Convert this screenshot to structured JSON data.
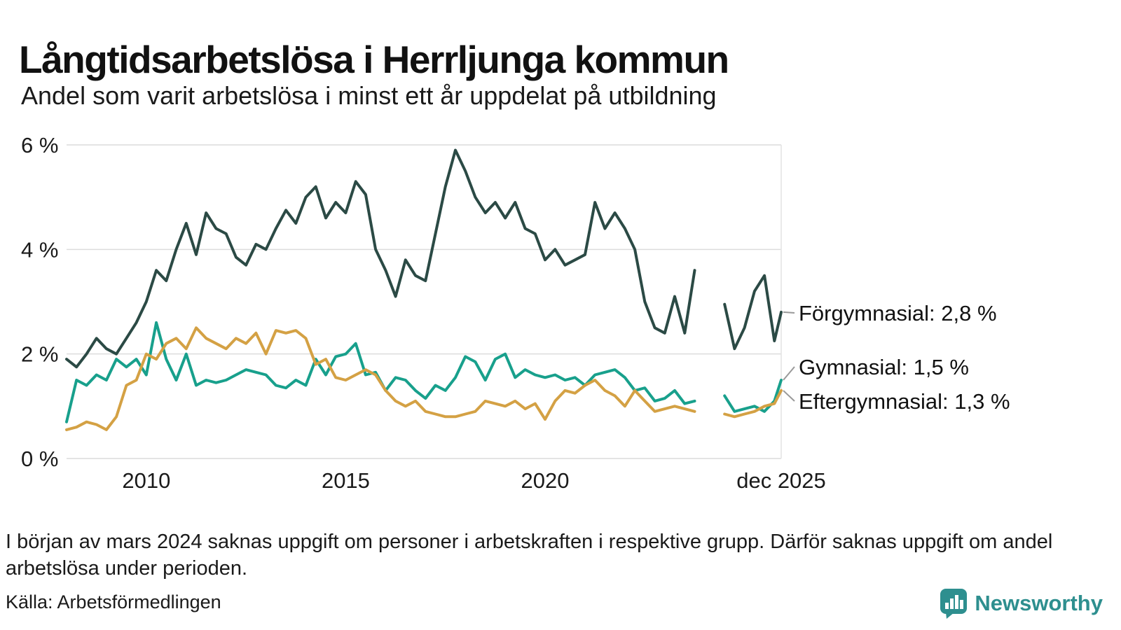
{
  "title": "Långtidsarbetslösa i Herrljunga kommun",
  "subtitle": "Andel som varit arbetslösa i minst ett år uppdelat på utbildning",
  "footnote": "I början av mars 2024 saknas uppgift om personer i arbetskraften i respektive grupp. Därför saknas uppgift om andel arbetslösa under perioden.",
  "source": "Källa: Arbetsförmedlingen",
  "logo": {
    "text": "Newsworthy",
    "color": "#2e8f8f",
    "icon": "bar-chart-badge-icon"
  },
  "chart_data": {
    "type": "line",
    "title": "Långtidsarbetslösa i Herrljunga kommun",
    "subtitle": "Andel som varit arbetslösa i minst ett år uppdelat på utbildning",
    "xlabel": "",
    "ylabel": "",
    "ylim": [
      0,
      6
    ],
    "xlim": [
      2008,
      2025.92
    ],
    "grid": "horizontal",
    "legend_position": "right-end-labels",
    "gap_note": "Data missing for all series around early 2024 (from March 2024)",
    "yticks": [
      {
        "value": 0,
        "label": "0 %"
      },
      {
        "value": 2,
        "label": "2 %"
      },
      {
        "value": 4,
        "label": "4 %"
      },
      {
        "value": 6,
        "label": "6 %"
      }
    ],
    "xticks": [
      {
        "value": 2010,
        "label": "2010"
      },
      {
        "value": 2015,
        "label": "2015"
      },
      {
        "value": 2020,
        "label": "2020"
      },
      {
        "value": 2025.92,
        "label": "dec 2025"
      }
    ],
    "x": [
      2008,
      2008.25,
      2008.5,
      2008.75,
      2009,
      2009.25,
      2009.5,
      2009.75,
      2010,
      2010.25,
      2010.5,
      2010.75,
      2011,
      2011.25,
      2011.5,
      2011.75,
      2012,
      2012.25,
      2012.5,
      2012.75,
      2013,
      2013.25,
      2013.5,
      2013.75,
      2014,
      2014.25,
      2014.5,
      2014.75,
      2015,
      2015.25,
      2015.5,
      2015.75,
      2016,
      2016.25,
      2016.5,
      2016.75,
      2017,
      2017.25,
      2017.5,
      2017.75,
      2018,
      2018.25,
      2018.5,
      2018.75,
      2019,
      2019.25,
      2019.5,
      2019.75,
      2020,
      2020.25,
      2020.5,
      2020.75,
      2021,
      2021.25,
      2021.5,
      2021.75,
      2022,
      2022.25,
      2022.5,
      2022.75,
      2023,
      2023.25,
      2023.5,
      2023.75,
      2024,
      2024.25,
      2024.5,
      2024.75,
      2025,
      2025.25,
      2025.5,
      2025.75,
      2025.92
    ],
    "series": [
      {
        "name": "Förgymnasial",
        "end_label": "Förgymnasial: 2,8 %",
        "end_value_text": "2,8 %",
        "color": "#2b4a45",
        "values": [
          1.9,
          1.75,
          2.0,
          2.3,
          2.1,
          2.0,
          2.3,
          2.6,
          3.0,
          3.6,
          3.4,
          4.0,
          4.5,
          3.9,
          4.7,
          4.4,
          4.3,
          3.85,
          3.7,
          4.1,
          4.0,
          4.4,
          4.75,
          4.5,
          5.0,
          5.2,
          4.6,
          4.9,
          4.7,
          5.3,
          5.05,
          4.0,
          3.6,
          3.1,
          3.8,
          3.5,
          3.4,
          4.3,
          5.2,
          5.9,
          5.5,
          5.0,
          4.7,
          4.9,
          4.6,
          4.9,
          4.4,
          4.3,
          3.8,
          4.0,
          3.7,
          3.8,
          3.9,
          4.9,
          4.4,
          4.7,
          4.4,
          4.0,
          3.0,
          2.5,
          2.4,
          3.1,
          2.4,
          3.6,
          null,
          null,
          2.95,
          2.1,
          2.5,
          3.2,
          3.5,
          2.25,
          2.8
        ]
      },
      {
        "name": "Gymnasial",
        "end_label": "Gymnasial: 1,5 %",
        "end_value_text": "1,5 %",
        "color": "#18a08c",
        "values": [
          0.7,
          1.5,
          1.4,
          1.6,
          1.5,
          1.9,
          1.75,
          1.9,
          1.6,
          2.6,
          1.9,
          1.5,
          2.0,
          1.4,
          1.5,
          1.45,
          1.5,
          1.6,
          1.7,
          1.65,
          1.6,
          1.4,
          1.35,
          1.5,
          1.4,
          1.9,
          1.6,
          1.95,
          2.0,
          2.2,
          1.6,
          1.65,
          1.3,
          1.55,
          1.5,
          1.3,
          1.15,
          1.4,
          1.3,
          1.55,
          1.95,
          1.85,
          1.5,
          1.9,
          2.0,
          1.55,
          1.7,
          1.6,
          1.55,
          1.6,
          1.5,
          1.55,
          1.4,
          1.6,
          1.65,
          1.7,
          1.55,
          1.3,
          1.35,
          1.1,
          1.15,
          1.3,
          1.05,
          1.1,
          null,
          null,
          1.2,
          0.9,
          0.95,
          1.0,
          0.9,
          1.1,
          1.5
        ]
      },
      {
        "name": "Eftergymnasial",
        "end_label": "Eftergymnasial: 1,3 %",
        "end_value_text": "1,3 %",
        "color": "#d4a144",
        "values": [
          0.55,
          0.6,
          0.7,
          0.65,
          0.55,
          0.8,
          1.4,
          1.5,
          2.0,
          1.9,
          2.2,
          2.3,
          2.1,
          2.5,
          2.3,
          2.2,
          2.1,
          2.3,
          2.2,
          2.4,
          2.0,
          2.45,
          2.4,
          2.45,
          2.3,
          1.8,
          1.9,
          1.55,
          1.5,
          1.6,
          1.7,
          1.6,
          1.3,
          1.1,
          1.0,
          1.1,
          0.9,
          0.85,
          0.8,
          0.8,
          0.85,
          0.9,
          1.1,
          1.05,
          1.0,
          1.1,
          0.95,
          1.05,
          0.75,
          1.1,
          1.3,
          1.25,
          1.4,
          1.5,
          1.3,
          1.2,
          1.0,
          1.3,
          1.1,
          0.9,
          0.95,
          1.0,
          0.95,
          0.9,
          null,
          null,
          0.85,
          0.8,
          0.85,
          0.9,
          1.0,
          1.05,
          1.3
        ]
      }
    ]
  }
}
